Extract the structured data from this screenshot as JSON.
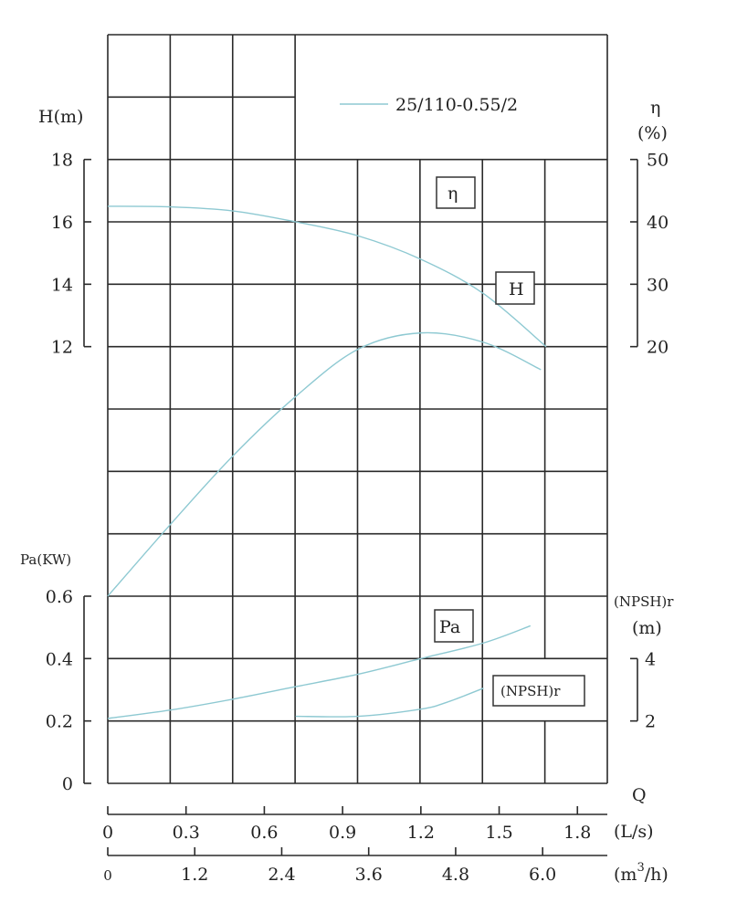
{
  "chart_data": {
    "type": "line",
    "legend": {
      "label": "25/110-0.55/2",
      "placement": "top-right"
    },
    "curve_color": "#8ec9d2",
    "grid": true,
    "x_axes": [
      {
        "unit": "(L/s)",
        "ticks": [
          "0",
          "0.3",
          "0.6",
          "0.9",
          "1.2",
          "1.5",
          "1.8"
        ],
        "values": [
          0,
          0.3,
          0.6,
          0.9,
          1.2,
          1.5,
          1.8
        ]
      },
      {
        "unit": "(m³/h)",
        "unit_base": "(m",
        "unit_sup": "3",
        "unit_tail": "/h)",
        "ticks": [
          "0",
          "1.2",
          "2.4",
          "3.6",
          "4.8",
          "6.0"
        ],
        "values": [
          0,
          1.2,
          2.4,
          3.6,
          4.8,
          6.0
        ]
      }
    ],
    "x_label": "Q",
    "y_axes": {
      "H": {
        "label": "H(m)",
        "ticks": [
          "18",
          "16",
          "14",
          "12"
        ],
        "values": [
          18,
          16,
          14,
          12
        ]
      },
      "eta": {
        "label": "η",
        "unit": "(%)",
        "ticks": [
          "50",
          "40",
          "30",
          "20"
        ],
        "values": [
          50,
          40,
          30,
          20
        ]
      },
      "Pa": {
        "label": "Pa(KW)",
        "ticks": [
          "0.6",
          "0.4",
          "0.2",
          "0"
        ],
        "values": [
          0.6,
          0.4,
          0.2,
          0
        ]
      },
      "NPSH": {
        "label": "(NPSH)r",
        "unit": "(m)",
        "ticks": [
          "4",
          "2"
        ],
        "values": [
          4,
          2
        ]
      }
    },
    "curve_labels": {
      "H": "H",
      "eta": "η",
      "Pa": "Pa",
      "NPSH": "(NPSH)r"
    },
    "series": [
      {
        "name": "H",
        "axis": "H",
        "x": [
          0,
          0.24,
          0.48,
          0.72,
          0.96,
          1.2,
          1.44,
          1.68
        ],
        "y": [
          16.5,
          16.48,
          16.35,
          16.0,
          15.55,
          14.8,
          13.7,
          12.0
        ]
      },
      {
        "name": "η",
        "axis": "eta",
        "x": [
          0,
          0.24,
          0.48,
          0.72,
          0.96,
          1.2,
          1.44,
          1.66
        ],
        "y": [
          -20,
          -8.5,
          2.5,
          12,
          19.6,
          22.2,
          20.7,
          16.3
        ]
      },
      {
        "name": "Pa",
        "axis": "Pa",
        "x": [
          0,
          0.24,
          0.48,
          0.72,
          0.96,
          1.2,
          1.44,
          1.62
        ],
        "y": [
          0.208,
          0.235,
          0.27,
          0.31,
          0.35,
          0.4,
          0.45,
          0.505
        ]
      },
      {
        "name": "(NPSH)r",
        "axis": "NPSH",
        "x": [
          0.72,
          0.96,
          1.2,
          1.3,
          1.44
        ],
        "y": [
          2.15,
          2.15,
          2.38,
          2.6,
          3.05
        ]
      }
    ]
  }
}
